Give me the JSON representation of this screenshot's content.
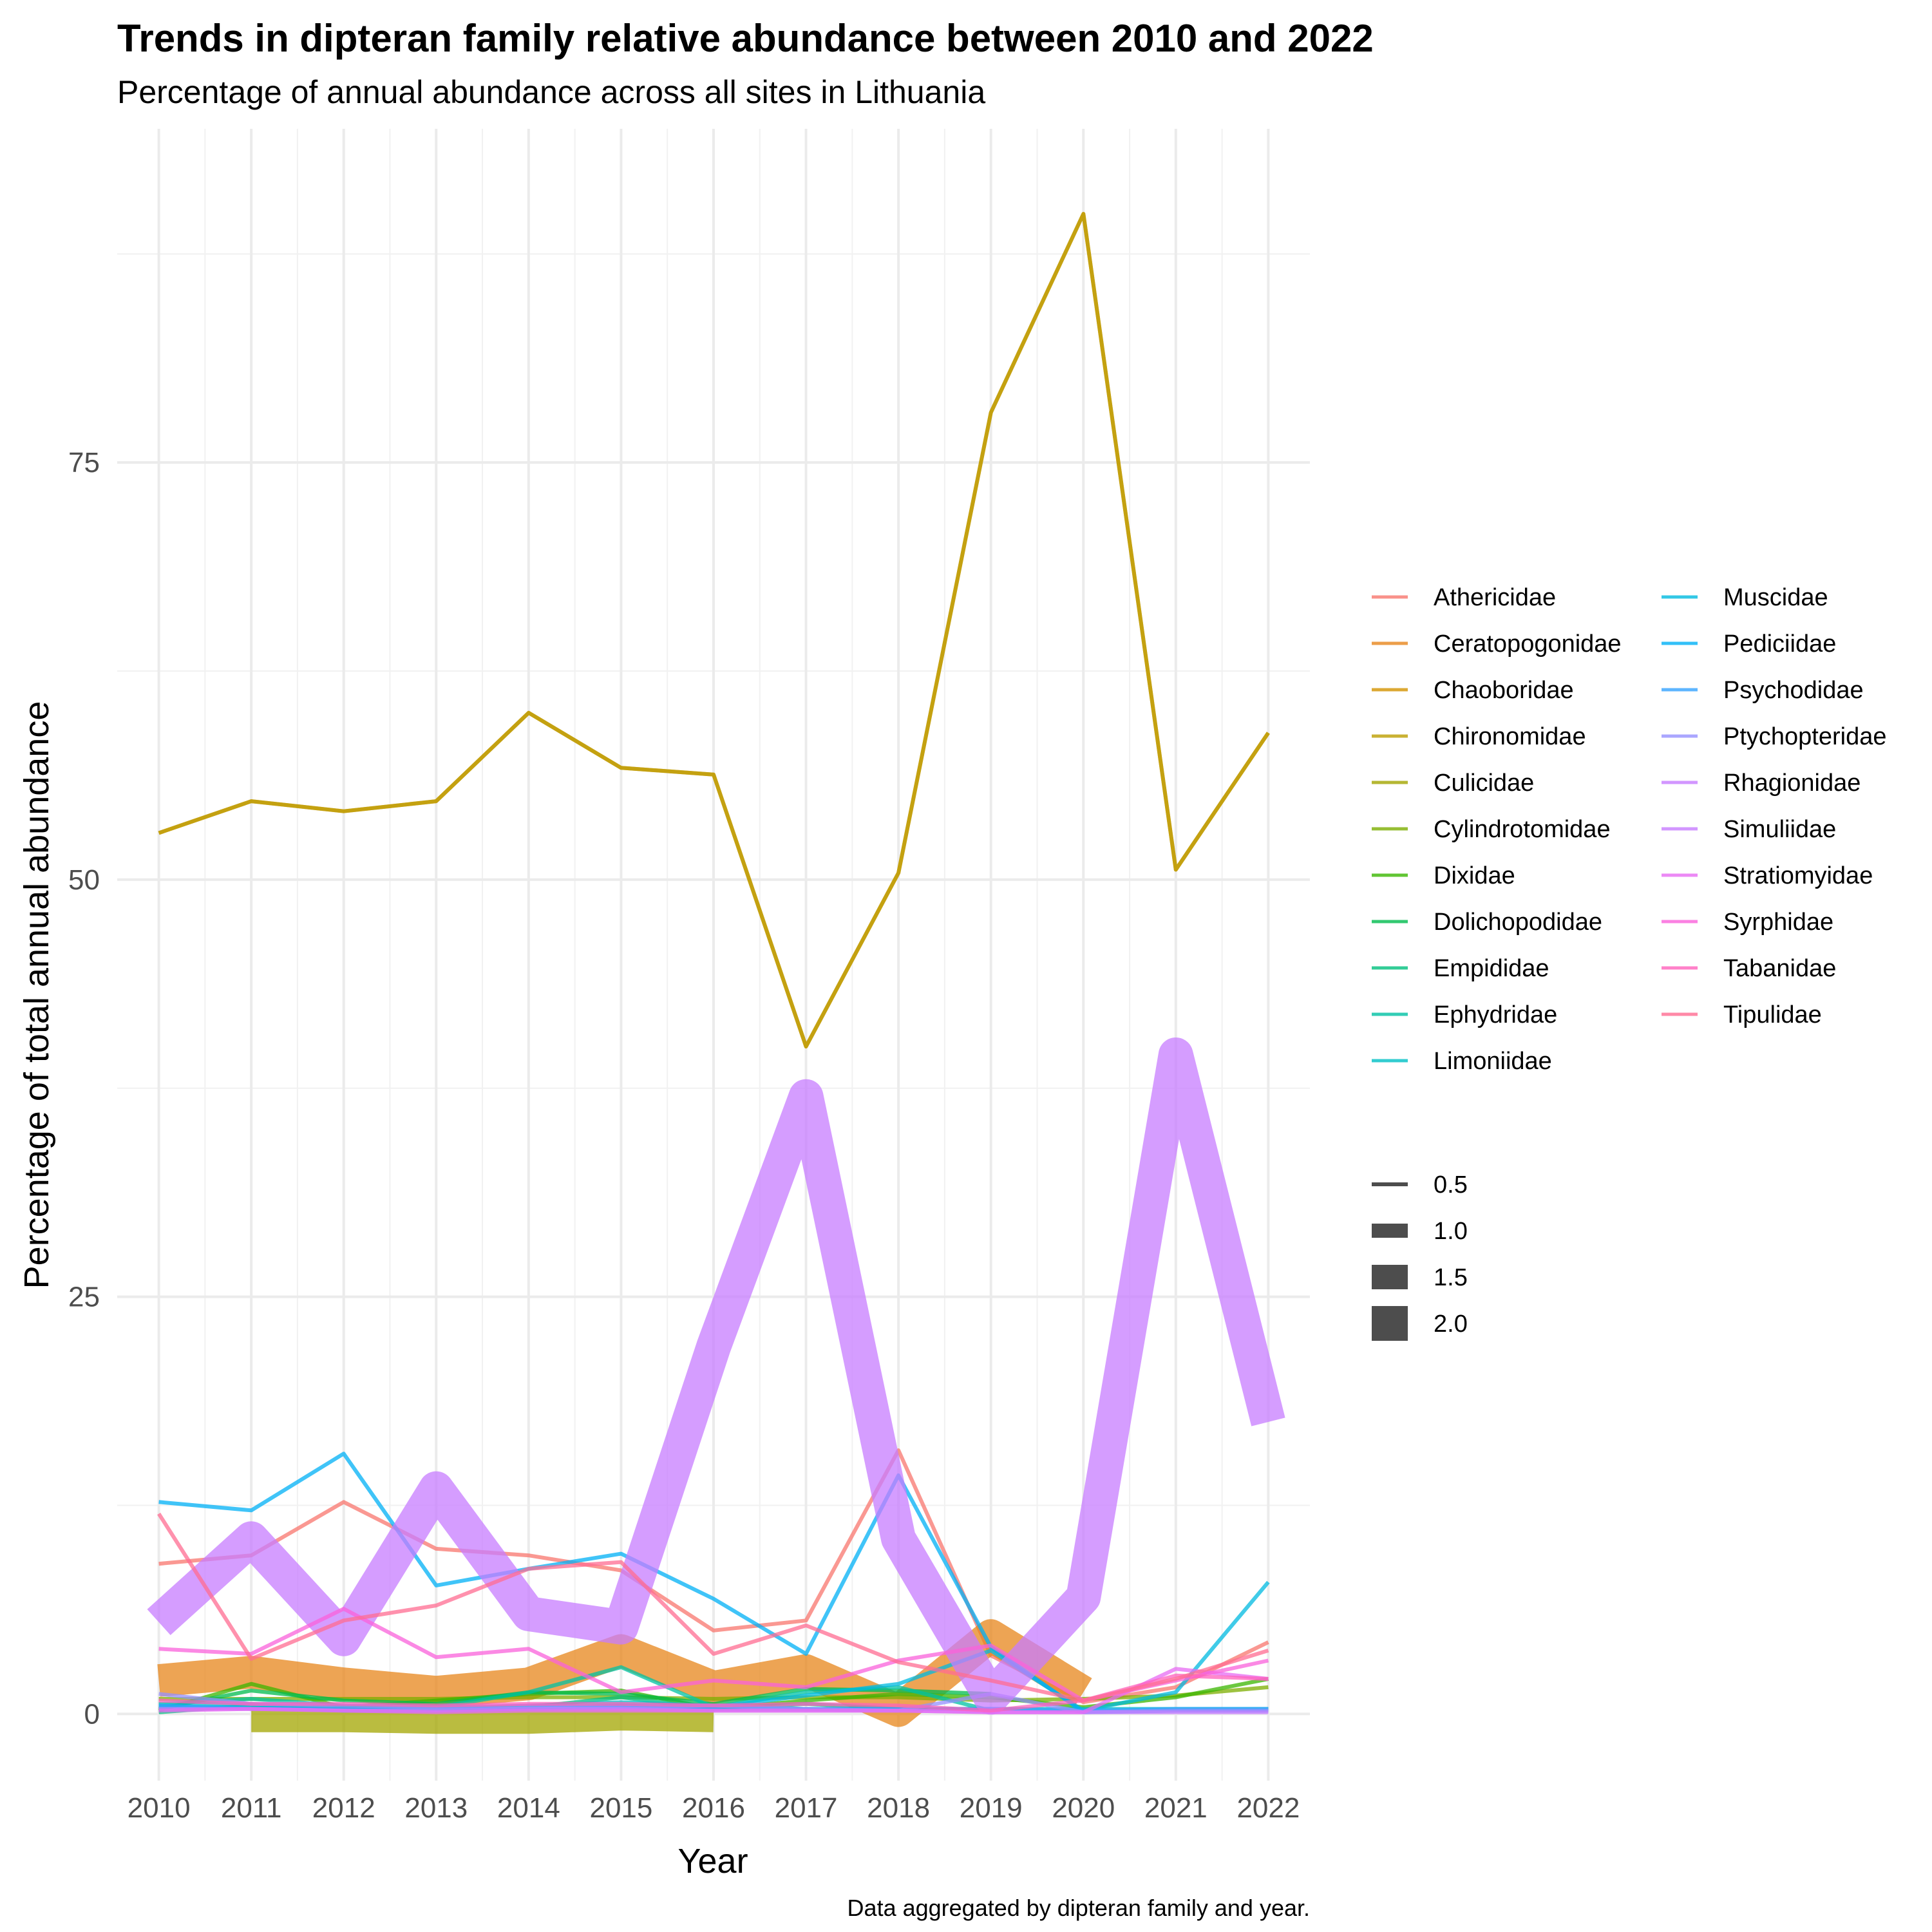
{
  "chart_data": {
    "type": "line",
    "title": "Trends in dipteran family relative abundance between 2010 and 2022",
    "subtitle": "Percentage of annual abundance across all sites in Lithuania",
    "xlabel": "Year",
    "ylabel": "Percentage of total annual abundance",
    "caption": "Data aggregated by dipteran family and year.",
    "x": [
      2010,
      2011,
      2012,
      2013,
      2014,
      2015,
      2016,
      2017,
      2018,
      2019,
      2020,
      2021,
      2022
    ],
    "xlim": [
      2009.55,
      2022.45
    ],
    "ylim": [
      -4,
      95
    ],
    "y_ticks": [
      0,
      25,
      50,
      75
    ],
    "grid": true,
    "legend_position": "right",
    "size_legend": [
      "0.5",
      "1.0",
      "1.5",
      "2.0"
    ],
    "series": [
      {
        "name": "Athericidae",
        "color": "#F8766D",
        "size": 0.5,
        "values": [
          9.0,
          9.5,
          12.7,
          9.9,
          9.5,
          8.6,
          5.0,
          5.6,
          15.8,
          3.5,
          0.7,
          1.6,
          4.3
        ]
      },
      {
        "name": "Ceratopogonidae",
        "color": "#E7861B",
        "size": 1.9,
        "values": [
          2.0,
          2.5,
          1.8,
          1.3,
          1.8,
          3.8,
          1.6,
          2.6,
          0.2,
          4.7,
          1.3,
          null,
          null
        ]
      },
      {
        "name": "Chaoboridae",
        "color": "#D39200",
        "size": 0.5,
        "values": [
          52.8,
          54.7,
          54.1,
          54.7,
          60.0,
          56.7,
          56.3,
          40.0,
          50.4,
          78.0,
          89.9,
          50.6,
          58.8
        ]
      },
      {
        "name": "Chironomidae",
        "color": "#BB9D00",
        "size": 0.5,
        "values": [
          52.8,
          54.7,
          54.1,
          54.7,
          60.0,
          56.7,
          56.3,
          40.0,
          50.4,
          78.0,
          89.9,
          50.6,
          58.8
        ]
      },
      {
        "name": "Culicidae",
        "color": "#A3A500",
        "size": 1.6,
        "values": [
          null,
          -0.3,
          -0.3,
          -0.4,
          -0.4,
          -0.2,
          -0.3,
          null,
          null,
          null,
          null,
          null,
          null
        ]
      },
      {
        "name": "Cylindrotomidae",
        "color": "#7CAE00",
        "size": 0.5,
        "values": [
          0.9,
          0.9,
          0.9,
          0.9,
          1.0,
          1.0,
          0.9,
          1.0,
          1.0,
          0.8,
          0.9,
          1.1,
          1.6
        ]
      },
      {
        "name": "Dixidae",
        "color": "#39B600",
        "size": 0.5,
        "values": [
          0.2,
          1.8,
          0.4,
          0.8,
          1.2,
          1.4,
          0.3,
          0.8,
          1.2,
          1.0,
          0.4,
          1.0,
          2.1
        ]
      },
      {
        "name": "Dolichopodidae",
        "color": "#00BB4E",
        "size": 0.5,
        "values": [
          0.3,
          1.4,
          0.8,
          0.6,
          1.3,
          1.2,
          0.6,
          1.5,
          1.4,
          1.2,
          null,
          null,
          null
        ]
      },
      {
        "name": "Empididae",
        "color": "#00BF7D",
        "size": 0.5,
        "values": [
          0.1,
          0.5,
          0.2,
          0.4,
          0.4,
          1.0,
          0.3,
          0.6,
          0.3,
          0.3,
          null,
          null,
          null
        ]
      },
      {
        "name": "Ephydridae",
        "color": "#00C1A3",
        "size": 0.5,
        "values": [
          0.6,
          0.9,
          0.5,
          0.4,
          1.3,
          2.8,
          0.4,
          1.3,
          1.6,
          0.2,
          null,
          null,
          null
        ]
      },
      {
        "name": "Limoniidae",
        "color": "#00BFC4",
        "size": 0.5,
        "values": [
          0.5,
          0.6,
          0.3,
          0.3,
          0.5,
          0.7,
          0.5,
          0.3,
          0.3,
          0.3,
          0.3,
          0.3,
          0.3
        ]
      },
      {
        "name": "Muscidae",
        "color": "#00BAE0",
        "size": 0.5,
        "values": [
          0.4,
          0.4,
          0.2,
          0.2,
          0.3,
          0.4,
          0.4,
          1.1,
          1.8,
          3.8,
          0.2,
          1.3,
          7.9
        ]
      },
      {
        "name": "Pediciidae",
        "color": "#00B0F6",
        "size": 0.5,
        "values": [
          12.7,
          12.2,
          15.6,
          7.7,
          8.7,
          9.6,
          6.9,
          3.6,
          14.3,
          4.0,
          0.1,
          0.2,
          0.2
        ]
      },
      {
        "name": "Psychodidae",
        "color": "#35A2FF",
        "size": 0.5,
        "values": [
          0.5,
          0.3,
          0.3,
          0.3,
          0.3,
          0.5,
          0.3,
          0.3,
          0.3,
          0.3,
          0.2,
          0.3,
          0.3
        ]
      },
      {
        "name": "Ptychopteridae",
        "color": "#9590FF",
        "size": 0.5,
        "values": [
          1.2,
          0.6,
          0.5,
          0.4,
          0.5,
          0.4,
          0.5,
          0.3,
          0.2,
          1.2,
          0.1,
          0.2,
          0.2
        ]
      },
      {
        "name": "Rhagionidae",
        "color": "#C77CFF",
        "size": 0.5,
        "values": [
          0.3,
          0.3,
          0.2,
          0.2,
          0.3,
          0.3,
          0.2,
          0.2,
          0.2,
          0.1,
          0.1,
          0.1,
          0.1
        ]
      },
      {
        "name": "Simuliidae",
        "color": "#C77CFF",
        "size": 2.0,
        "values": [
          5.5,
          10.5,
          4.5,
          13.5,
          6.0,
          5.2,
          22.0,
          37.0,
          10.5,
          1.0,
          7.0,
          39.5,
          17.5
        ]
      },
      {
        "name": "Stratiomyidae",
        "color": "#E76BF3",
        "size": 0.5,
        "values": [
          0.2,
          0.3,
          0.2,
          0.1,
          0.2,
          0.2,
          0.2,
          0.2,
          0.2,
          0.1,
          0.1,
          2.7,
          2.1
        ]
      },
      {
        "name": "Syrphidae",
        "color": "#FA62DB",
        "size": 0.5,
        "values": [
          3.9,
          3.6,
          6.3,
          3.4,
          3.9,
          1.3,
          2.0,
          1.6,
          3.2,
          4.1,
          0.8,
          2.0,
          3.2
        ]
      },
      {
        "name": "Tabanidae",
        "color": "#FF62BC",
        "size": 0.5,
        "values": [
          0.8,
          0.6,
          0.6,
          0.5,
          0.6,
          0.6,
          0.5,
          0.6,
          0.5,
          0.2,
          0.8,
          2.3,
          2.1
        ]
      },
      {
        "name": "Tipulidae",
        "color": "#FF6C91",
        "size": 0.5,
        "values": [
          12.0,
          3.3,
          5.6,
          6.5,
          8.7,
          9.1,
          3.6,
          5.3,
          3.1,
          2.0,
          0.8,
          2.1,
          3.8
        ]
      }
    ]
  }
}
